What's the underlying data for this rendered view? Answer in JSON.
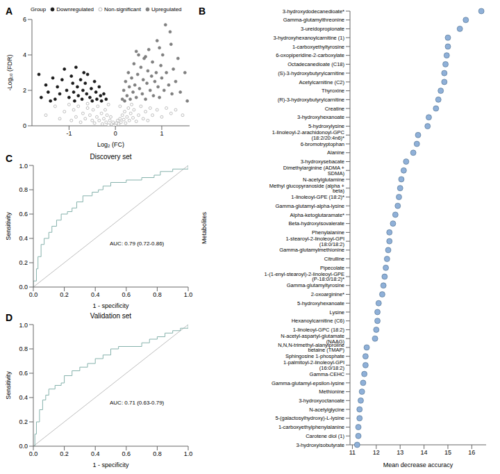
{
  "chart_data": [
    {
      "type": "scatter",
      "panel": "A",
      "x_label": "Log₂ (FC)",
      "y_label": "-Log₁₀ (FDR)",
      "legend": "top",
      "legend_title": "Group",
      "xlim": [
        -1.8,
        1.6
      ],
      "xticks": [
        -1,
        0,
        1
      ],
      "ylim": [
        0,
        6
      ],
      "yticks": [
        0,
        2,
        4,
        6
      ],
      "series": [
        {
          "name": "Downregulated",
          "color": "#1a1a1a",
          "marker": "circle",
          "points": [
            [
              -1.65,
              2.9
            ],
            [
              -1.6,
              1.6
            ],
            [
              -1.5,
              2.3
            ],
            [
              -1.45,
              1.9
            ],
            [
              -1.35,
              2.7
            ],
            [
              -1.3,
              1.5
            ],
            [
              -1.25,
              2.2
            ],
            [
              -1.2,
              1.8
            ],
            [
              -1.15,
              2.6
            ],
            [
              -1.1,
              3.2
            ],
            [
              -1.05,
              2.0
            ],
            [
              -1.0,
              1.6
            ],
            [
              -0.95,
              2.8
            ],
            [
              -0.92,
              2.4
            ],
            [
              -0.9,
              1.9
            ],
            [
              -0.85,
              3.3
            ],
            [
              -0.82,
              2.2
            ],
            [
              -0.8,
              1.7
            ],
            [
              -0.75,
              2.6
            ],
            [
              -0.72,
              1.5
            ],
            [
              -0.7,
              2.0
            ],
            [
              -0.65,
              2.4
            ],
            [
              -0.62,
              1.8
            ],
            [
              -0.6,
              2.9
            ],
            [
              -0.55,
              1.6
            ],
            [
              -0.52,
              2.1
            ],
            [
              -0.5,
              1.4
            ],
            [
              -0.45,
              2.5
            ],
            [
              -0.42,
              1.9
            ],
            [
              -0.4,
              1.5
            ],
            [
              -0.35,
              2.2
            ],
            [
              -0.32,
              1.7
            ],
            [
              -0.3,
              1.4
            ],
            [
              -0.25,
              1.8
            ],
            [
              -0.2,
              1.5
            ],
            [
              -1.4,
              1.4
            ],
            [
              -0.68,
              3.0
            ],
            [
              -0.88,
              1.4
            ]
          ]
        },
        {
          "name": "Non-significant",
          "color": "#a6a6a6",
          "marker": "open_circle",
          "points": [
            [
              -1.5,
              0.6
            ],
            [
              -1.3,
              1.1
            ],
            [
              -1.2,
              0.4
            ],
            [
              -1.1,
              0.8
            ],
            [
              -1.0,
              1.2
            ],
            [
              -0.95,
              0.3
            ],
            [
              -0.9,
              0.9
            ],
            [
              -0.85,
              0.5
            ],
            [
              -0.8,
              1.1
            ],
            [
              -0.75,
              0.2
            ],
            [
              -0.7,
              0.7
            ],
            [
              -0.65,
              0.4
            ],
            [
              -0.6,
              1.0
            ],
            [
              -0.55,
              0.6
            ],
            [
              -0.5,
              0.3
            ],
            [
              -0.48,
              0.9
            ],
            [
              -0.45,
              0.15
            ],
            [
              -0.4,
              0.5
            ],
            [
              -0.38,
              1.1
            ],
            [
              -0.35,
              0.3
            ],
            [
              -0.3,
              0.7
            ],
            [
              -0.28,
              0.1
            ],
            [
              -0.25,
              0.4
            ],
            [
              -0.22,
              0.9
            ],
            [
              -0.2,
              0.2
            ],
            [
              -0.18,
              0.6
            ],
            [
              -0.15,
              0.05
            ],
            [
              -0.12,
              0.3
            ],
            [
              -0.1,
              0.5
            ],
            [
              -0.08,
              0.1
            ],
            [
              -0.05,
              0.2
            ],
            [
              -0.03,
              0.02
            ],
            [
              0.0,
              0.05
            ],
            [
              0.02,
              0.15
            ],
            [
              0.05,
              0.3
            ],
            [
              0.07,
              0.1
            ],
            [
              0.1,
              0.4
            ],
            [
              0.12,
              0.2
            ],
            [
              0.15,
              0.6
            ],
            [
              0.18,
              0.35
            ],
            [
              0.2,
              0.8
            ],
            [
              0.22,
              0.15
            ],
            [
              0.25,
              0.5
            ],
            [
              0.28,
              1.0
            ],
            [
              0.3,
              0.3
            ],
            [
              0.33,
              0.7
            ],
            [
              0.35,
              1.2
            ],
            [
              0.38,
              0.45
            ],
            [
              0.4,
              0.9
            ],
            [
              0.45,
              0.25
            ],
            [
              0.5,
              0.6
            ],
            [
              0.55,
              1.1
            ],
            [
              0.6,
              0.4
            ],
            [
              0.65,
              0.8
            ],
            [
              0.7,
              0.3
            ],
            [
              0.75,
              1.0
            ],
            [
              0.8,
              0.6
            ],
            [
              0.9,
              0.9
            ],
            [
              1.0,
              0.5
            ],
            [
              1.1,
              1.0
            ],
            [
              1.2,
              0.7
            ],
            [
              1.3,
              0.9
            ],
            [
              1.45,
              0.6
            ],
            [
              -0.15,
              1.2
            ],
            [
              -0.6,
              1.25
            ],
            [
              0.1,
              1.1
            ]
          ]
        },
        {
          "name": "Upregulated",
          "color": "#7f7f7f",
          "marker": "circle",
          "points": [
            [
              0.15,
              1.5
            ],
            [
              0.18,
              2.0
            ],
            [
              0.2,
              1.4
            ],
            [
              0.22,
              2.5
            ],
            [
              0.25,
              1.7
            ],
            [
              0.28,
              3.0
            ],
            [
              0.3,
              2.2
            ],
            [
              0.32,
              1.5
            ],
            [
              0.35,
              2.7
            ],
            [
              0.38,
              1.9
            ],
            [
              0.4,
              3.5
            ],
            [
              0.42,
              2.3
            ],
            [
              0.45,
              1.6
            ],
            [
              0.48,
              2.9
            ],
            [
              0.5,
              4.0
            ],
            [
              0.52,
              2.1
            ],
            [
              0.55,
              3.3
            ],
            [
              0.58,
              1.8
            ],
            [
              0.6,
              2.6
            ],
            [
              0.62,
              3.8
            ],
            [
              0.65,
              1.5
            ],
            [
              0.68,
              2.4
            ],
            [
              0.7,
              3.1
            ],
            [
              0.72,
              4.3
            ],
            [
              0.75,
              2.0
            ],
            [
              0.78,
              2.8
            ],
            [
              0.8,
              3.6
            ],
            [
              0.82,
              1.7
            ],
            [
              0.85,
              2.5
            ],
            [
              0.88,
              3.0
            ],
            [
              0.9,
              4.8
            ],
            [
              0.92,
              2.2
            ],
            [
              0.95,
              1.6
            ],
            [
              0.98,
              3.4
            ],
            [
              1.0,
              2.7
            ],
            [
              1.02,
              4.0
            ],
            [
              1.05,
              2.0
            ],
            [
              1.08,
              5.7
            ],
            [
              1.1,
              3.0
            ],
            [
              1.15,
              2.3
            ],
            [
              1.2,
              4.6
            ],
            [
              1.22,
              1.8
            ],
            [
              1.25,
              3.2
            ],
            [
              1.3,
              2.5
            ],
            [
              1.35,
              3.8
            ],
            [
              1.4,
              1.9
            ],
            [
              1.5,
              3.0
            ],
            [
              1.55,
              1.4
            ],
            [
              0.95,
              4.4
            ],
            [
              1.18,
              5.3
            ],
            [
              0.65,
              3.9
            ],
            [
              0.45,
              4.2
            ]
          ]
        }
      ]
    },
    {
      "type": "dot",
      "panel": "B",
      "orientation": "horizontal",
      "x_label": "Mean decrease accuracy",
      "y_label": "Metabolites",
      "color": "#8fb0d8",
      "xlim": [
        10.9,
        16.6
      ],
      "xticks": [
        11,
        12,
        13,
        14,
        15,
        16
      ],
      "categories": [
        "3-hydroxydodecanedioate*",
        "Gamma-glutamylthreonine",
        "3-ureidopropionate",
        "3-hydroxyhexanoylcarnitine (1)",
        "1-carboxyethyltyrosine",
        "6-oxopiperidine-2-carboxylate",
        "Octadecanedioate (C18)",
        "(S)-3-hydroxybutyrylcarnitine",
        "Acetylcarnitine (C2)",
        "Thyroxine",
        "(R)-3-hydroxybutyrylcarnitine",
        "Creatine",
        "3-hydroxyhexanoate",
        "5-hydroxylysine",
        "1-linoleoyl-2-arachidonoyl-GPC (18:2/20:4n6)*",
        "6-bromotryptophan",
        "Alanine",
        "3-hydroxysebacate",
        "Dimethylarginine (ADMA + SDMA)",
        "N-acetylglutamine",
        "Methyl glucopyranoside (alpha + beta)",
        "1-linoleoyl-GPE (18:2)*",
        "Gamma-glutamyl-alpha-lysine",
        "Alpha-ketoglutaramate*",
        "Beta-hydroxyisovalerate",
        "Phenylalanine",
        "1-stearoyl-2-linoleoyl-GPI (18:0/18:2)",
        "Gamma-glutamylmethionine",
        "Citrulline",
        "Pipecolate",
        "1-(1-enyl-stearoyl)-2-linoleoyl-GPE (P-18:0/18:2)*",
        "Gamma-glutamyltyrosine",
        "2-oxoarginine*",
        "5-hydroxyhexanoate",
        "Lysine",
        "Hexanoylcarnitine (C6)",
        "1-linoleoyl-GPC (18:2)",
        "N-acetyl-aspartyl-glutamate (NAAG)",
        "N,N,N-trimethyl-alanylproline betaine (TMAP)",
        "Sphingosine 1-phosphate",
        "1-palmitoyl-2-linoleoyl-GPI (16:0/18:2)",
        "Gamma-CEHC",
        "Gamma-glutamyl-epsilon-lysine",
        "Methionine",
        "3-hydroxyoctanoate",
        "N-acetylglycine",
        "5-(galactosylhydroxy)-L-lysine",
        "1-carboxyethylphenylalanine",
        "Carotene diol (1)",
        "3-hydroxyisobutyrate"
      ],
      "values": [
        16.4,
        15.75,
        15.5,
        15.0,
        15.0,
        14.95,
        14.9,
        14.85,
        14.85,
        14.7,
        14.6,
        14.5,
        14.2,
        14.15,
        13.75,
        13.7,
        13.55,
        13.25,
        13.15,
        13.05,
        13.0,
        12.95,
        12.9,
        12.8,
        12.7,
        12.55,
        12.55,
        12.5,
        12.45,
        12.4,
        12.35,
        12.3,
        12.25,
        12.1,
        12.05,
        12.05,
        12.0,
        11.95,
        11.6,
        11.55,
        11.55,
        11.5,
        11.45,
        11.4,
        11.35,
        11.3,
        11.3,
        11.25,
        11.25,
        11.2
      ]
    },
    {
      "type": "line",
      "panel": "C",
      "title": "Discovery set",
      "x_label": "1 - specificity",
      "y_label": "Sensitivity",
      "annotation": "AUC: 0.79 (0.72-0.86)",
      "xlim": [
        0,
        1
      ],
      "xticks": [
        {
          "value": 0,
          "label": "0.0"
        },
        0.2,
        0.4,
        0.6,
        0.8,
        {
          "value": 1,
          "label": "1.0"
        }
      ],
      "ylim": [
        0,
        1
      ],
      "yticks": [
        {
          "value": 0,
          "label": "0.0"
        },
        0.2,
        0.4,
        0.6,
        0.8,
        {
          "value": 1,
          "label": "1.0"
        }
      ],
      "series": [
        {
          "color": "#bdbdbd",
          "line_style": "solid",
          "x": [
            0,
            1
          ],
          "values": [
            0,
            1
          ]
        },
        {
          "color": "#86b2ac",
          "line_style": "step",
          "x": [
            0,
            0,
            0.02,
            0.03,
            0.05,
            0.07,
            0.1,
            0.12,
            0.15,
            0.18,
            0.22,
            0.25,
            0.28,
            0.32,
            0.38,
            0.42,
            0.45,
            0.5,
            0.6,
            0.7,
            0.78,
            0.82,
            0.9,
            1
          ],
          "values": [
            0,
            0.05,
            0.15,
            0.25,
            0.35,
            0.4,
            0.45,
            0.5,
            0.55,
            0.6,
            0.62,
            0.65,
            0.7,
            0.75,
            0.78,
            0.8,
            0.83,
            0.86,
            0.88,
            0.9,
            0.92,
            0.95,
            0.97,
            1
          ]
        }
      ]
    },
    {
      "type": "line",
      "panel": "D",
      "title": "Validation set",
      "x_label": "1 - specificity",
      "y_label": "Sensitivity",
      "annotation": "AUC: 0.71 (0.63-0.79)",
      "xlim": [
        0,
        1
      ],
      "xticks": [
        {
          "value": 0,
          "label": "0.0"
        },
        0.2,
        0.4,
        0.6,
        0.8,
        {
          "value": 1,
          "label": "1.0"
        }
      ],
      "ylim": [
        0,
        1
      ],
      "yticks": [
        {
          "value": 0,
          "label": "0.0"
        },
        0.2,
        0.4,
        0.6,
        0.8,
        {
          "value": 1,
          "label": "1.0"
        }
      ],
      "series": [
        {
          "color": "#bdbdbd",
          "line_style": "solid",
          "x": [
            0,
            1
          ],
          "values": [
            0,
            1
          ]
        },
        {
          "color": "#86b2ac",
          "line_style": "step",
          "x": [
            0,
            0.01,
            0.02,
            0.04,
            0.06,
            0.08,
            0.1,
            0.14,
            0.18,
            0.2,
            0.25,
            0.3,
            0.35,
            0.4,
            0.45,
            0.5,
            0.55,
            0.7,
            0.75,
            0.8,
            0.85,
            0.9,
            0.95,
            1
          ],
          "values": [
            0,
            0.1,
            0.2,
            0.3,
            0.38,
            0.42,
            0.47,
            0.5,
            0.52,
            0.58,
            0.62,
            0.65,
            0.68,
            0.72,
            0.75,
            0.8,
            0.82,
            0.85,
            0.88,
            0.9,
            0.93,
            0.95,
            0.97,
            1
          ]
        }
      ]
    }
  ]
}
